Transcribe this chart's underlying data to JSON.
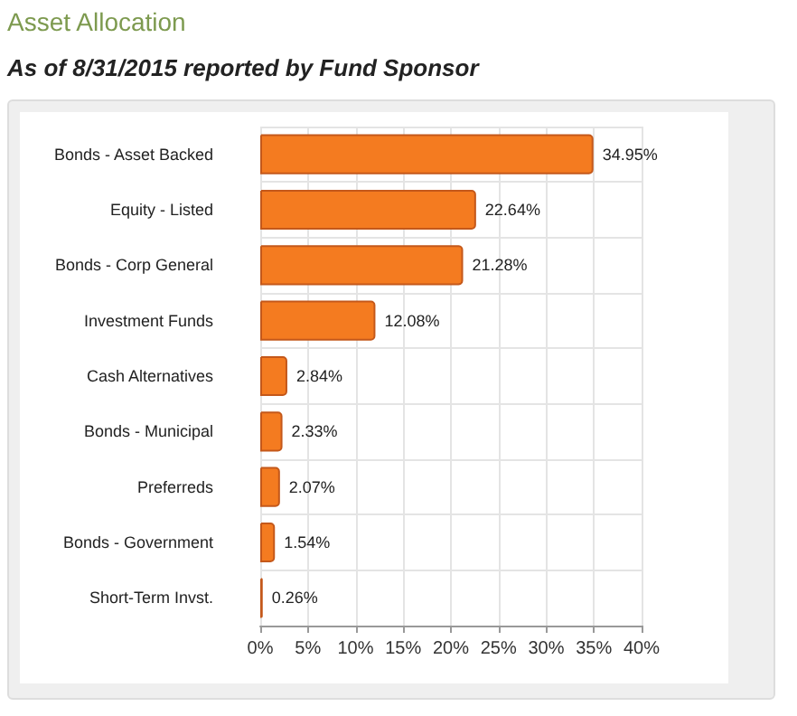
{
  "chart_data": {
    "type": "bar",
    "orientation": "horizontal",
    "title": "Asset Allocation",
    "subtitle": "As of 8/31/2015 reported by Fund Sponsor",
    "categories": [
      "Bonds - Asset Backed",
      "Equity - Listed",
      "Bonds - Corp General",
      "Investment Funds",
      "Cash Alternatives",
      "Bonds - Municipal",
      "Preferreds",
      "Bonds - Government",
      "Short-Term Invst."
    ],
    "values": [
      34.95,
      22.64,
      21.28,
      12.08,
      2.84,
      2.33,
      2.07,
      1.54,
      0.26
    ],
    "value_labels": [
      "34.95%",
      "22.64%",
      "21.28%",
      "12.08%",
      "2.84%",
      "2.33%",
      "2.07%",
      "1.54%",
      "0.26%"
    ],
    "color": "#f47b20",
    "xlim": [
      0,
      40
    ],
    "xticks": [
      {
        "value": 0,
        "label": "0%"
      },
      {
        "value": 5,
        "label": "5%"
      },
      {
        "value": 10,
        "label": "10%"
      },
      {
        "value": 15,
        "label": "15%"
      },
      {
        "value": 20,
        "label": "20%"
      },
      {
        "value": 25,
        "label": "25%"
      },
      {
        "value": 30,
        "label": "30%"
      },
      {
        "value": 35,
        "label": "35%"
      },
      {
        "value": 40,
        "label": "40%"
      }
    ],
    "grid": true
  }
}
